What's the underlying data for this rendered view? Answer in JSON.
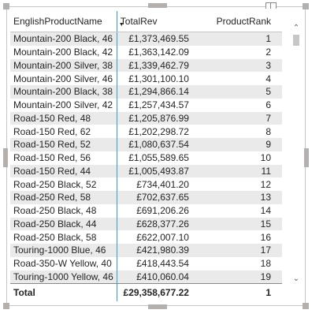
{
  "table": {
    "columns": [
      "EnglishProductName",
      "TotalRev",
      "ProductRank"
    ],
    "rows": [
      {
        "name": "Mountain-200 Black, 46",
        "rev": "£1,373,469.55",
        "rank": "1"
      },
      {
        "name": "Mountain-200 Black, 42",
        "rev": "£1,363,142.09",
        "rank": "2"
      },
      {
        "name": "Mountain-200 Silver, 38",
        "rev": "£1,339,462.79",
        "rank": "3"
      },
      {
        "name": "Mountain-200 Silver, 46",
        "rev": "£1,301,100.10",
        "rank": "4"
      },
      {
        "name": "Mountain-200 Black, 38",
        "rev": "£1,294,866.14",
        "rank": "5"
      },
      {
        "name": "Mountain-200 Silver, 42",
        "rev": "£1,257,434.57",
        "rank": "6"
      },
      {
        "name": "Road-150 Red, 48",
        "rev": "£1,205,876.99",
        "rank": "7"
      },
      {
        "name": "Road-150 Red, 62",
        "rev": "£1,202,298.72",
        "rank": "8"
      },
      {
        "name": "Road-150 Red, 52",
        "rev": "£1,080,637.54",
        "rank": "9"
      },
      {
        "name": "Road-150 Red, 56",
        "rev": "£1,055,589.65",
        "rank": "10"
      },
      {
        "name": "Road-150 Red, 44",
        "rev": "£1,005,493.87",
        "rank": "11"
      },
      {
        "name": "Road-250 Black, 52",
        "rev": "£734,401.20",
        "rank": "12"
      },
      {
        "name": "Road-250 Red, 58",
        "rev": "£702,637.65",
        "rank": "13"
      },
      {
        "name": "Road-250 Black, 48",
        "rev": "£691,206.26",
        "rank": "14"
      },
      {
        "name": "Road-250 Black, 44",
        "rev": "£628,377.26",
        "rank": "15"
      },
      {
        "name": "Road-250 Black, 58",
        "rev": "£622,007.10",
        "rank": "16"
      },
      {
        "name": "Touring-1000 Blue, 46",
        "rev": "£421,980.39",
        "rank": "17"
      },
      {
        "name": "Road-350-W Yellow, 40",
        "rev": "£418,443.54",
        "rank": "18"
      },
      {
        "name": "Touring-1000 Yellow, 46",
        "rev": "£410,060.04",
        "rank": "19"
      }
    ],
    "total": {
      "label": "Total",
      "rev": "£29,358,677.22",
      "rank": "1"
    }
  },
  "icons": {
    "sort": "sort-descending-icon",
    "scroll_up": "chevron-up-icon",
    "scroll_down": "chevron-down-icon",
    "focus": "focus-mode-icon"
  },
  "colors": {
    "band": "#eaeaea",
    "column_separator": "#2f9fd8",
    "frame": "#c8c6c4"
  }
}
